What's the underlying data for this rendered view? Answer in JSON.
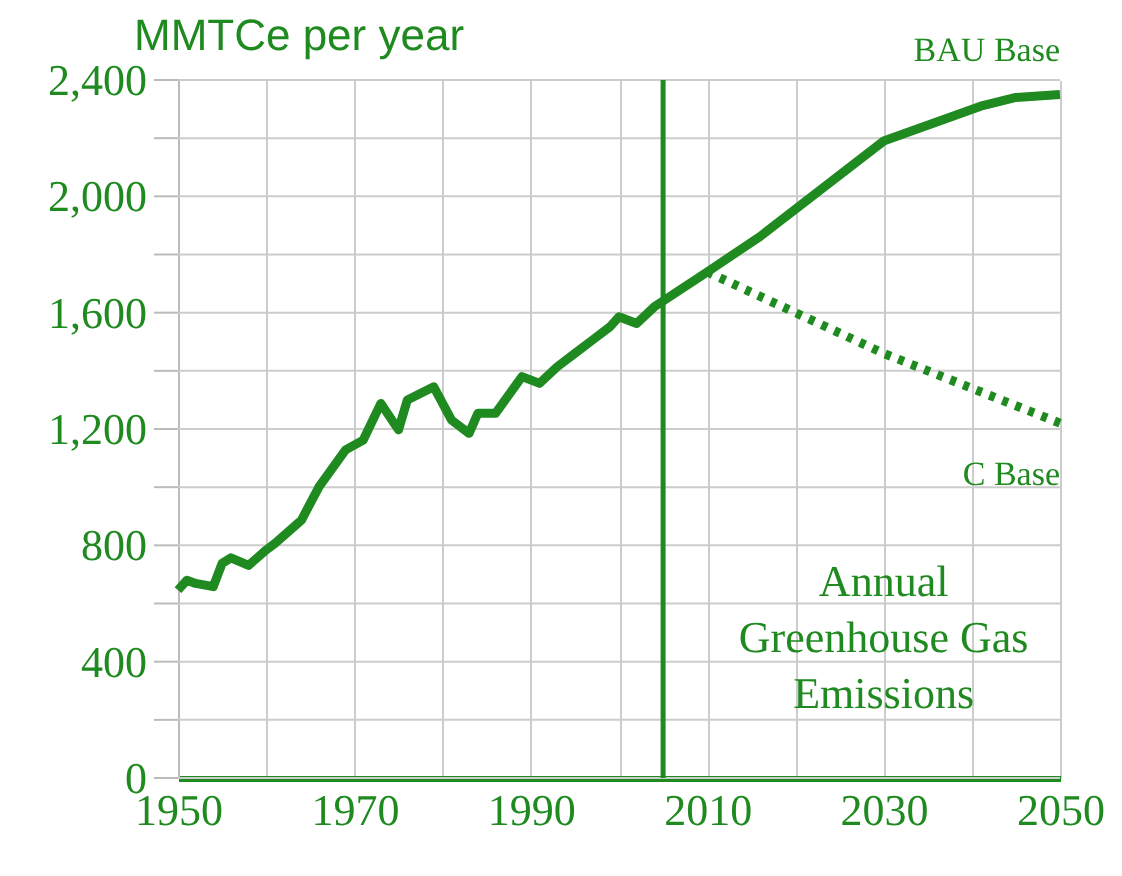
{
  "chart_data": {
    "type": "line",
    "ylabel": "MMTCe per year",
    "x": [
      1950,
      1951,
      1952,
      1954,
      1955,
      1956,
      1958,
      1960,
      1961,
      1964,
      1966,
      1969,
      1971,
      1973,
      1975,
      1976,
      1979,
      1981,
      1983,
      1984,
      1986,
      1989,
      1991,
      1993,
      1995,
      1997,
      1999,
      2000,
      2002,
      2004,
      2005,
      2010,
      2016,
      2030,
      2041,
      2045,
      2050
    ],
    "series": [
      {
        "name": "BAU Base",
        "color": "#1f8a1f",
        "line_style": "solid",
        "values": [
          646,
          680,
          669,
          658,
          738,
          757,
          731,
          784,
          807,
          887,
          1002,
          1128,
          1162,
          1288,
          1197,
          1300,
          1345,
          1231,
          1185,
          1254,
          1254,
          1380,
          1357,
          1414,
          1460,
          1506,
          1552,
          1586,
          1563,
          1620,
          1640,
          1740,
          1862,
          2190,
          2310,
          2340,
          2350
        ]
      },
      {
        "name": "C Base",
        "color": "#1f8a1f",
        "line_style": "dotted",
        "x": [
          2010,
          2030,
          2050
        ],
        "values": [
          1740,
          1460,
          1220
        ]
      }
    ],
    "xlim": [
      1950,
      2050
    ],
    "ylim": [
      0,
      2400
    ],
    "xticks": [
      1950,
      {
        "value": 1960,
        "label": null
      },
      1970,
      {
        "value": 1980,
        "label": null
      },
      1990,
      {
        "value": 2000,
        "label": null
      },
      2010,
      {
        "value": 2020,
        "label": null
      },
      2030,
      {
        "value": 2040,
        "label": null
      },
      2050
    ],
    "yticks": [
      0,
      {
        "value": 200,
        "label": null
      },
      400,
      {
        "value": 600,
        "label": null
      },
      800,
      {
        "value": 1000,
        "label": null
      },
      {
        "value": 1200,
        "label": "1,200"
      },
      {
        "value": 1400,
        "label": null
      },
      {
        "value": 1600,
        "label": "1,600"
      },
      {
        "value": 1800,
        "label": null
      },
      {
        "value": 2000,
        "label": "2,000"
      },
      {
        "value": 2200,
        "label": null
      },
      {
        "value": 2400,
        "label": "2,400"
      }
    ],
    "ref_lines": [
      {
        "axis": "x",
        "value": 2005,
        "color": "#1f8a1f"
      }
    ],
    "annotations": [
      "Annual\nGreenhouse Gas\nEmissions"
    ],
    "grid": true,
    "legend": false,
    "marker": "none"
  }
}
